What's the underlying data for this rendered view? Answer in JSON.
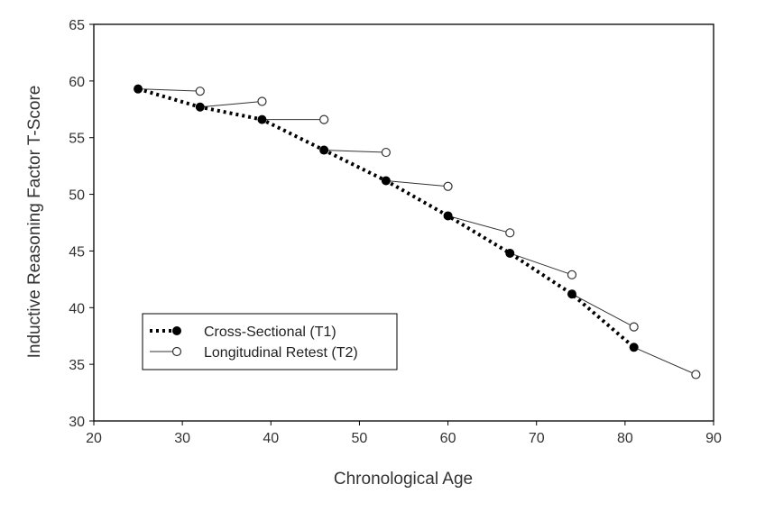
{
  "chart_data": {
    "type": "line",
    "xlabel": "Chronological Age",
    "ylabel": "Inductive Reasoning Factor T-Score",
    "xlim": [
      20,
      90
    ],
    "ylim": [
      30,
      65
    ],
    "xticks": [
      20,
      30,
      40,
      50,
      60,
      70,
      80,
      90
    ],
    "yticks": [
      30,
      35,
      40,
      45,
      50,
      55,
      60,
      65
    ],
    "grid": false,
    "legend_position": "lower-left",
    "series": [
      {
        "name": "Cross-Sectional (T1)",
        "style": "dotted line, filled circle markers",
        "x": [
          25,
          32,
          39,
          46,
          53,
          60,
          67,
          74,
          81
        ],
        "y": [
          59.3,
          57.7,
          56.6,
          53.9,
          51.2,
          48.1,
          44.8,
          41.2,
          36.5
        ]
      },
      {
        "name": "Longitudinal Retest (T2)",
        "style": "thin solid segments from each T1 point, open circle markers",
        "x": [
          32,
          39,
          46,
          53,
          60,
          67,
          74,
          81,
          88
        ],
        "y": [
          59.1,
          58.2,
          56.6,
          53.7,
          50.7,
          46.6,
          42.9,
          38.3,
          34.1
        ]
      }
    ]
  }
}
